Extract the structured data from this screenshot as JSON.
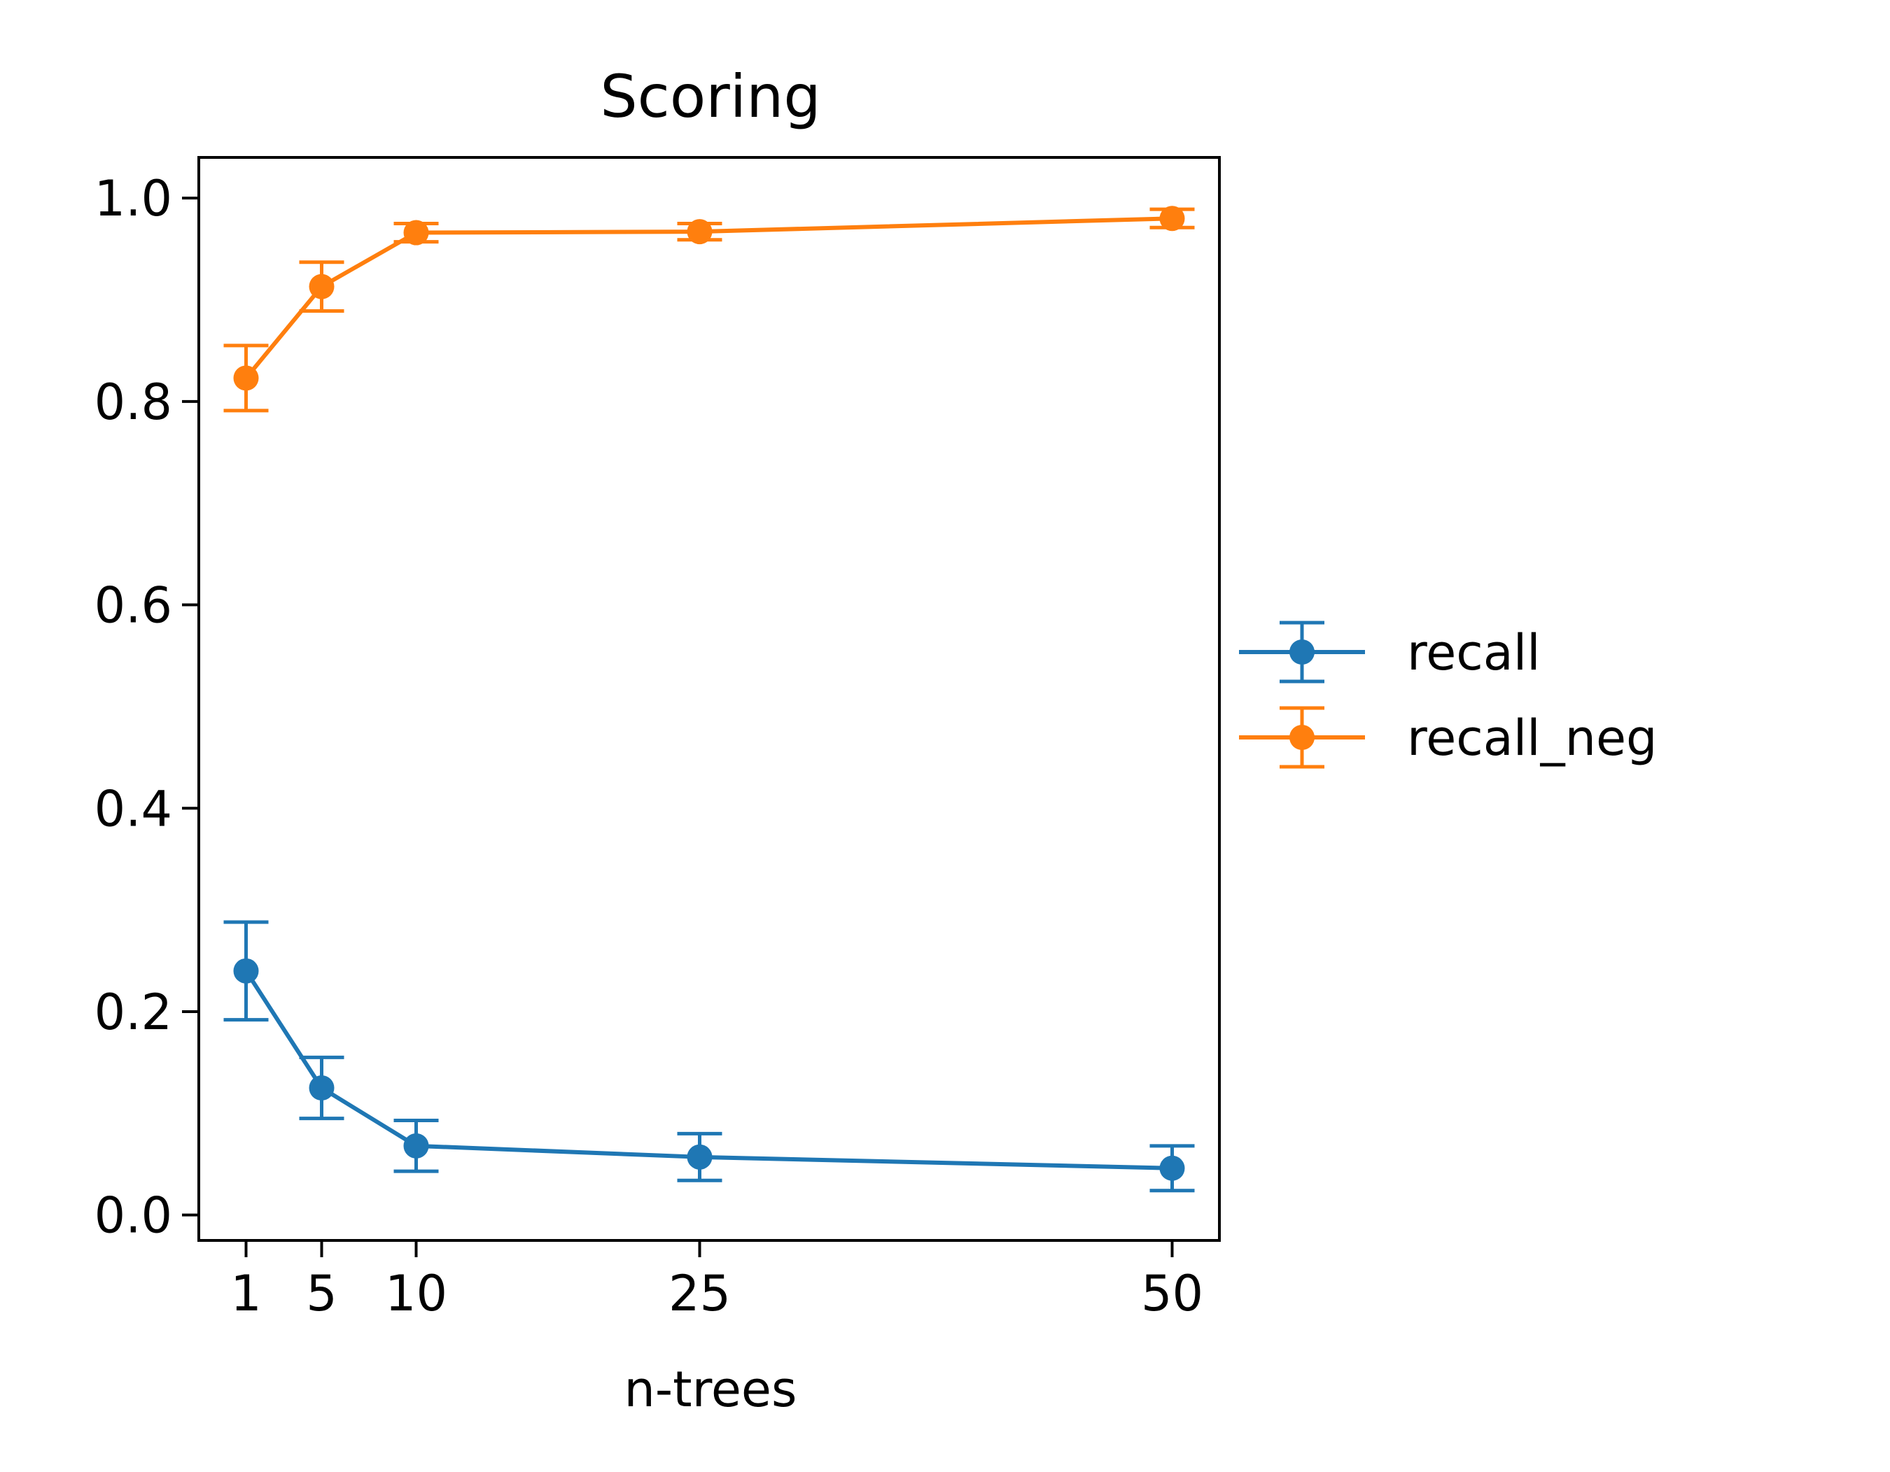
{
  "chart_data": {
    "type": "line",
    "title": "Scoring",
    "xlabel": "n-trees",
    "ylabel": "",
    "x": [
      1,
      5,
      10,
      25,
      50
    ],
    "x_tick_labels": [
      "1",
      "5",
      "10",
      "25",
      "50"
    ],
    "xlim": [
      -1.5,
      52.5
    ],
    "ylim": [
      -0.025,
      1.04
    ],
    "y_ticks": [
      0.0,
      0.2,
      0.4,
      0.6,
      0.8,
      1.0
    ],
    "y_tick_labels": [
      "0.0",
      "0.2",
      "0.4",
      "0.6",
      "0.8",
      "1.0"
    ],
    "grid": false,
    "legend_position": "center-right-outside",
    "error_bars": true,
    "series": [
      {
        "name": "recall",
        "color": "#1f77b4",
        "values": [
          0.24,
          0.125,
          0.068,
          0.057,
          0.046
        ],
        "errors": [
          0.048,
          0.03,
          0.025,
          0.023,
          0.022
        ]
      },
      {
        "name": "recall_neg",
        "color": "#ff7f0e",
        "values": [
          0.823,
          0.913,
          0.966,
          0.967,
          0.98
        ],
        "errors": [
          0.032,
          0.024,
          0.009,
          0.008,
          0.009
        ]
      }
    ]
  }
}
